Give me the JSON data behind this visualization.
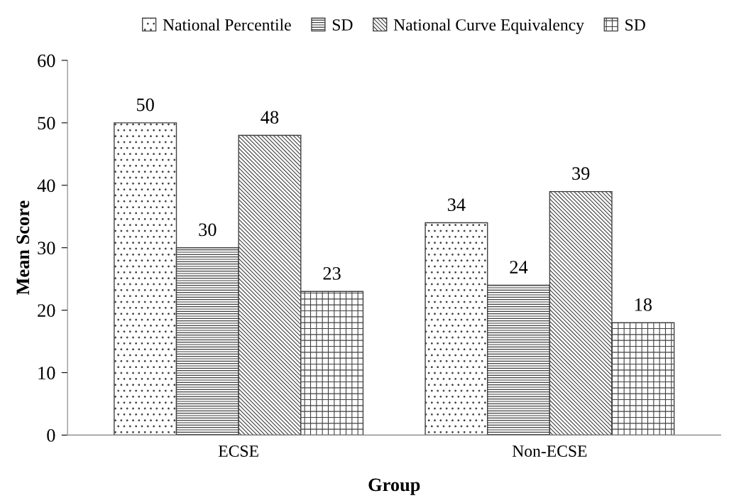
{
  "chart_data": {
    "type": "bar",
    "xlabel": "Group",
    "ylabel": "Mean Score",
    "categories": [
      "ECSE",
      "Non-ECSE"
    ],
    "series": [
      {
        "name": "National Percentile",
        "color": "#404040",
        "values": [
          50,
          34
        ]
      },
      {
        "name": "SD",
        "color": "#404040",
        "values": [
          30,
          24
        ]
      },
      {
        "name": "National Curve Equivalency",
        "color": "#404040",
        "values": [
          48,
          39
        ]
      },
      {
        "name": "SD",
        "color": "#404040",
        "values": [
          23,
          18
        ]
      }
    ],
    "ylim": [
      0,
      60
    ],
    "yticks": [
      0,
      10,
      20,
      30,
      40,
      50,
      60
    ],
    "data_labels": true,
    "legend": "top",
    "grid": false
  }
}
